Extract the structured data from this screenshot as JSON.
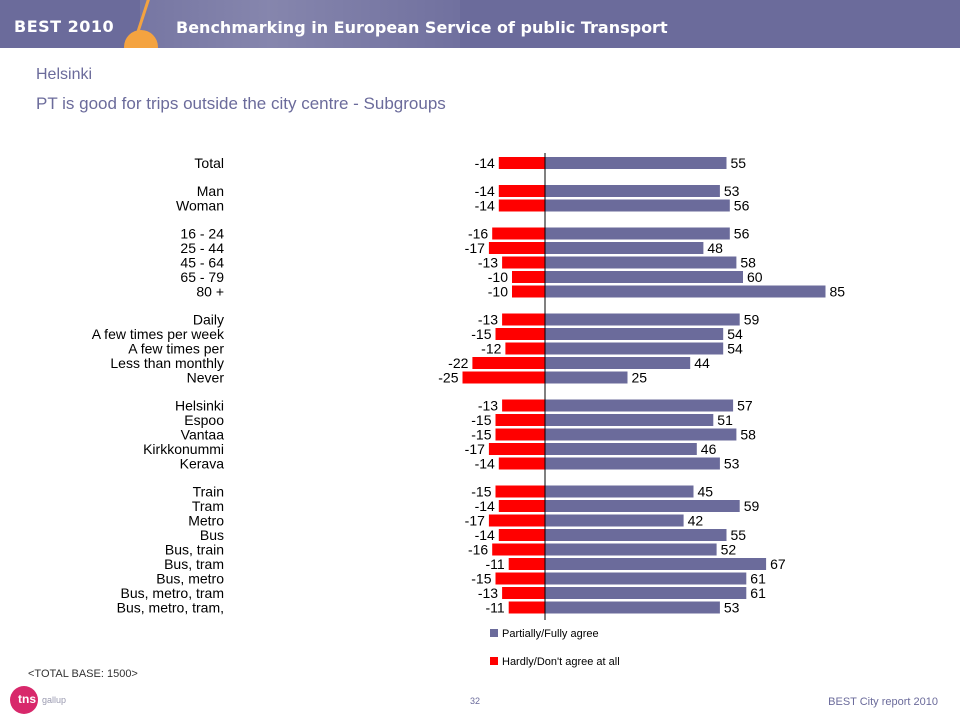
{
  "header": {
    "brand": "BEST 2010",
    "banner_title": "Benchmarking in European Service of public Transport"
  },
  "page": {
    "city": "Helsinki",
    "subtitle": "PT is good for trips outside the city centre - Subgroups",
    "base": "<TOTAL BASE: 1500>",
    "page_number": "32",
    "report_label": "BEST City report 2010",
    "logo_text": "tns",
    "logo_sub": "gallup"
  },
  "colors": {
    "brand": "#6b6b9b",
    "accent": "#f4a340",
    "agree": "#6b6b9b",
    "disagree": "#ff0000"
  },
  "chart_data": {
    "type": "bar",
    "orientation": "horizontal",
    "legend_placement": "bottom",
    "categories": [
      "Total",
      "Man",
      "Woman",
      "16 - 24",
      "25 - 44",
      "45 - 64",
      "65 - 79",
      "80 +",
      "Daily",
      "A few times per week",
      "A few times per",
      "Less than monthly",
      "Never",
      "Helsinki",
      "Espoo",
      "Vantaa",
      "Kirkkonummi",
      "Kerava",
      "Train",
      "Tram",
      "Metro",
      "Bus",
      "Bus, train",
      "Bus, tram",
      "Bus, metro",
      "Bus, metro, tram",
      "Bus, metro, tram,"
    ],
    "groups": [
      [
        0
      ],
      [
        1,
        2
      ],
      [
        3,
        4,
        5,
        6,
        7
      ],
      [
        8,
        9,
        10,
        11,
        12
      ],
      [
        13,
        14,
        15,
        16,
        17
      ],
      [
        18,
        19,
        20,
        21,
        22,
        23,
        24,
        25,
        26
      ]
    ],
    "series": [
      {
        "name": "Partially/Fully agree",
        "color": "#6b6b9b",
        "values": [
          55,
          53,
          56,
          56,
          48,
          58,
          60,
          85,
          59,
          54,
          54,
          44,
          25,
          57,
          51,
          58,
          46,
          53,
          45,
          59,
          42,
          55,
          52,
          67,
          61,
          61,
          53
        ]
      },
      {
        "name": "Hardly/Don't agree at all",
        "color": "#ff0000",
        "values": [
          -14,
          -14,
          -14,
          -16,
          -17,
          -13,
          -10,
          -10,
          -13,
          -15,
          -12,
          -22,
          -25,
          -13,
          -15,
          -15,
          -17,
          -14,
          -15,
          -14,
          -17,
          -14,
          -16,
          -11,
          -15,
          -13,
          -11
        ]
      }
    ]
  }
}
